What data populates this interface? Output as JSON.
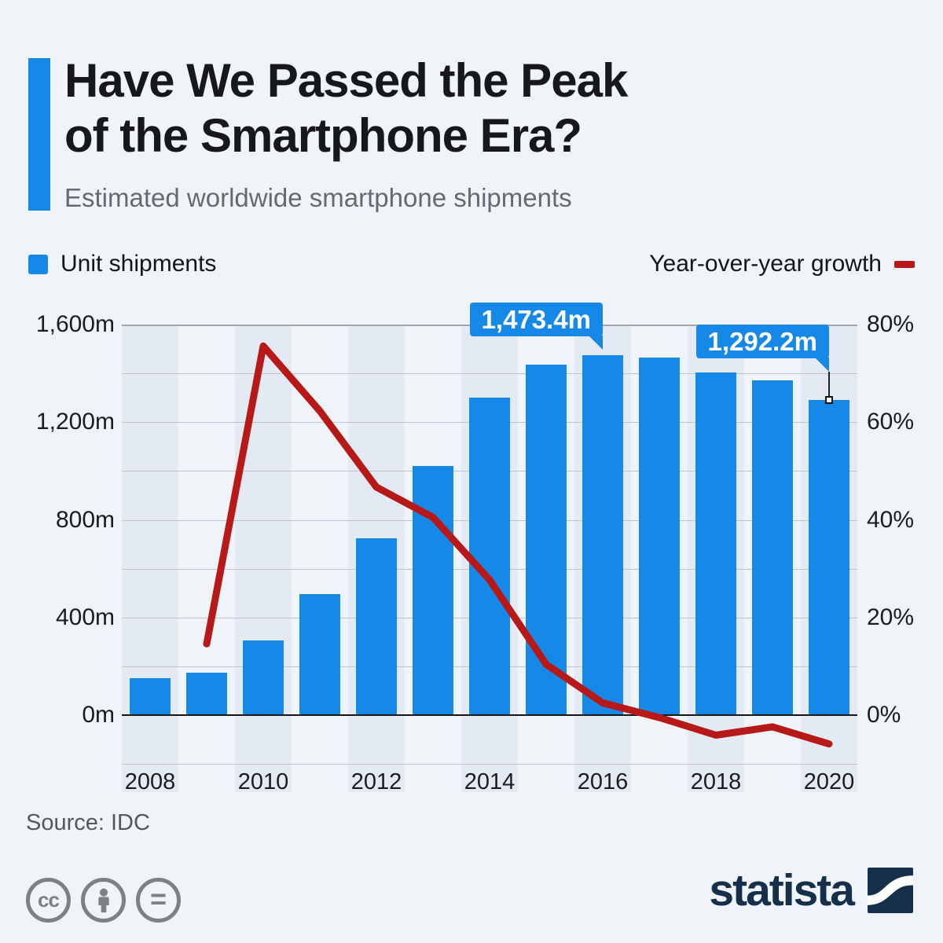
{
  "header": {
    "title_line1": "Have We Passed the Peak",
    "title_line2": "of the Smartphone Era?",
    "subtitle": "Estimated worldwide smartphone shipments",
    "accent_color": "#1588e8"
  },
  "legend": {
    "bars_label": "Unit shipments",
    "line_label": "Year-over-year growth"
  },
  "chart_data": {
    "type": "bar",
    "combo": "bar+line",
    "title": "Have We Passed the Peak of the Smartphone Era?",
    "subtitle": "Estimated worldwide smartphone shipments",
    "categories": [
      2008,
      2009,
      2010,
      2011,
      2012,
      2013,
      2014,
      2015,
      2016,
      2017,
      2018,
      2019,
      2020
    ],
    "series": [
      {
        "name": "Unit shipments",
        "type": "bar",
        "unit": "million units",
        "color": "#1588e8",
        "values": [
          151.4,
          173.5,
          304.7,
          494.5,
          725.3,
          1019.4,
          1301.7,
          1437.2,
          1473.4,
          1465.5,
          1404.9,
          1371.1,
          1292.2
        ]
      },
      {
        "name": "Year-over-year growth",
        "type": "line",
        "unit": "%",
        "color": "#b71918",
        "values": [
          null,
          14.6,
          75.6,
          62.3,
          46.7,
          40.5,
          27.7,
          10.4,
          2.5,
          -0.5,
          -4.1,
          -2.4,
          -5.9
        ]
      }
    ],
    "left_axis": {
      "ticks": [
        0,
        400,
        800,
        1200,
        1600
      ],
      "tick_labels": [
        "0m",
        "400m",
        "800m",
        "1,200m",
        "1,600m"
      ],
      "range": [
        -200,
        1600
      ],
      "minor_step": 200
    },
    "right_axis": {
      "ticks": [
        0,
        20,
        40,
        60,
        80
      ],
      "tick_labels": [
        "0%",
        "20%",
        "40%",
        "60%",
        "80%"
      ],
      "range": [
        -10,
        80
      ],
      "minor_step": 10
    },
    "x_tick_labels": [
      "2008",
      "2010",
      "2012",
      "2014",
      "2016",
      "2018",
      "2020"
    ],
    "annotations": [
      {
        "text": "1,473.4m",
        "year": 2016,
        "connector": false
      },
      {
        "text": "1,292.2m",
        "year": 2020,
        "connector": true
      }
    ],
    "gridlines": true,
    "legend_position": "top"
  },
  "footer": {
    "source": "Source: IDC",
    "cc_glyph": "cc",
    "equals_glyph": "=",
    "license_icons": [
      "cc-icon",
      "attribution-person-icon",
      "equals-icon"
    ],
    "brand": "statista",
    "brand_color": "#14304a"
  }
}
